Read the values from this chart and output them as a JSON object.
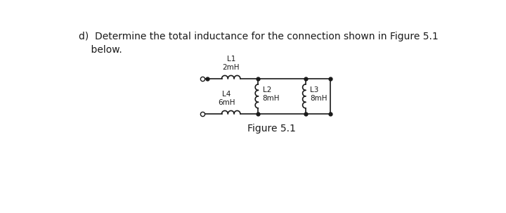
{
  "title_text": "d)  Determine the total inductance for the connection shown in Figure 5.1\n    below.",
  "figure_label": "Figure 5.1",
  "bg_color": "#ffffff",
  "line_color": "#1a1a1a",
  "L1_label": "L1\n2mH",
  "L2_label": "L2\n8mH",
  "L3_label": "L3\n8mH",
  "L4_label": "L4\n6mH",
  "figsize": [
    7.2,
    3.03
  ],
  "dpi": 100
}
